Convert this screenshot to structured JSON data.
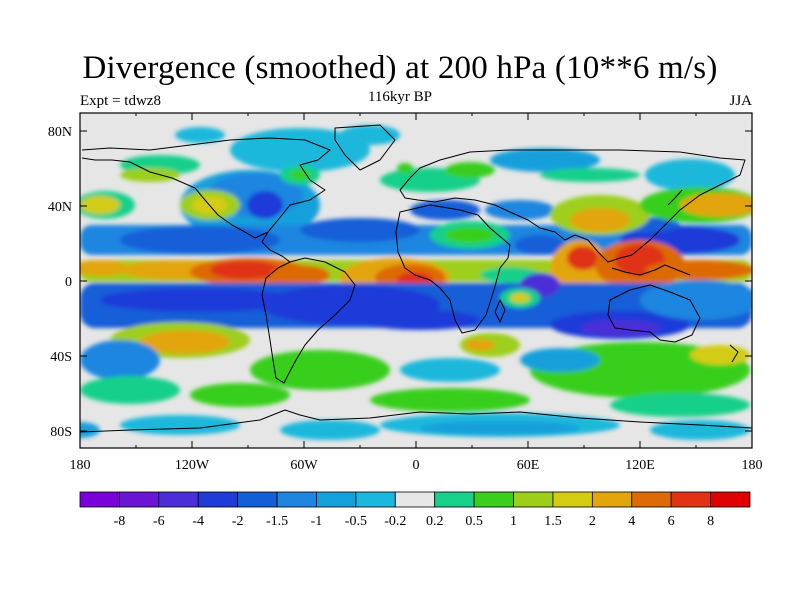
{
  "title": "Divergence (smoothed) at 200 hPa (10**6 m/s)",
  "left_label": "Expt = tdwz8",
  "center_label": "116kyr BP",
  "right_label": "JJA",
  "axes": {
    "x_ticks": [
      "180",
      "120W",
      "60W",
      "0",
      "60E",
      "120E",
      "180"
    ],
    "y_ticks": [
      "80N",
      "40N",
      "0",
      "40S",
      "80S"
    ]
  },
  "colorbar": {
    "colors": [
      "#7a00d9",
      "#6a14d6",
      "#4b2ed8",
      "#1f3bd8",
      "#145fd8",
      "#1f86e0",
      "#14a0db",
      "#1ab8dc",
      "#e6e6e6",
      "#18d08a",
      "#39cf1c",
      "#9dcf1a",
      "#d3cc12",
      "#e2a50e",
      "#dd6a06",
      "#e03214",
      "#e00000"
    ],
    "labels": [
      "-8",
      "-6",
      "-4",
      "-2",
      "-1.5",
      "-1",
      "-0.5",
      "-0.2",
      "0.2",
      "0.5",
      "1",
      "1.5",
      "2",
      "4",
      "6",
      "8"
    ]
  }
}
